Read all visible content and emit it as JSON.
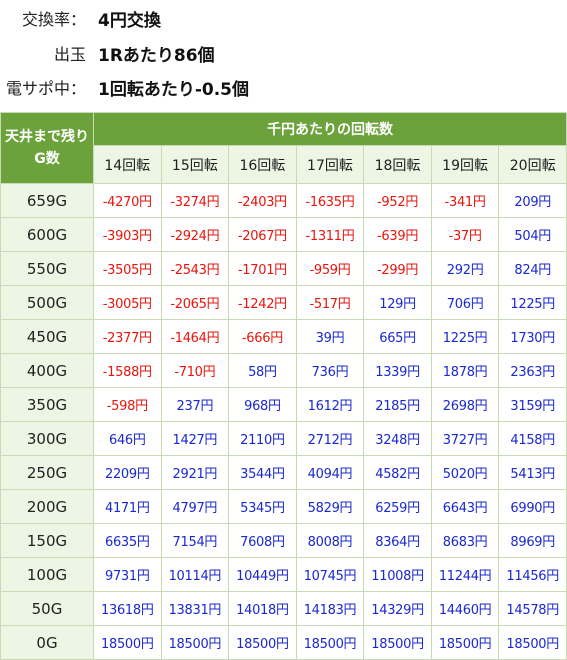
{
  "info": [
    {
      "label": "交換率：",
      "value": "4円交換"
    },
    {
      "label": "出玉",
      "value": "1Rあたり86個"
    },
    {
      "label": "電サポ中：",
      "value": "1回転あたり-0.5個"
    }
  ],
  "table": {
    "corner": "天井まで残りG数",
    "group_header": "千円あたりの回転数",
    "columns": [
      "14回転",
      "15回転",
      "16回転",
      "17回転",
      "18回転",
      "19回転",
      "20回転"
    ],
    "rows": [
      {
        "label": "659G",
        "values": [
          "-4270円",
          "-3274円",
          "-2403円",
          "-1635円",
          "-952円",
          "-341円",
          "209円"
        ]
      },
      {
        "label": "600G",
        "values": [
          "-3903円",
          "-2924円",
          "-2067円",
          "-1311円",
          "-639円",
          "-37円",
          "504円"
        ]
      },
      {
        "label": "550G",
        "values": [
          "-3505円",
          "-2543円",
          "-1701円",
          "-959円",
          "-299円",
          "292円",
          "824円"
        ]
      },
      {
        "label": "500G",
        "values": [
          "-3005円",
          "-2065円",
          "-1242円",
          "-517円",
          "129円",
          "706円",
          "1225円"
        ]
      },
      {
        "label": "450G",
        "values": [
          "-2377円",
          "-1464円",
          "-666円",
          "39円",
          "665円",
          "1225円",
          "1730円"
        ]
      },
      {
        "label": "400G",
        "values": [
          "-1588円",
          "-710円",
          "58円",
          "736円",
          "1339円",
          "1878円",
          "2363円"
        ]
      },
      {
        "label": "350G",
        "values": [
          "-598円",
          "237円",
          "968円",
          "1612円",
          "2185円",
          "2698円",
          "3159円"
        ]
      },
      {
        "label": "300G",
        "values": [
          "646円",
          "1427円",
          "2110円",
          "2712円",
          "3248円",
          "3727円",
          "4158円"
        ]
      },
      {
        "label": "250G",
        "values": [
          "2209円",
          "2921円",
          "3544円",
          "4094円",
          "4582円",
          "5020円",
          "5413円"
        ]
      },
      {
        "label": "200G",
        "values": [
          "4171円",
          "4797円",
          "5345円",
          "5829円",
          "6259円",
          "6643円",
          "6990円"
        ]
      },
      {
        "label": "150G",
        "values": [
          "6635円",
          "7154円",
          "7608円",
          "8008円",
          "8364円",
          "8683円",
          "8969円"
        ]
      },
      {
        "label": "100G",
        "values": [
          "9731円",
          "10114円",
          "10449円",
          "10745円",
          "11008円",
          "11244円",
          "11456円"
        ]
      },
      {
        "label": "50G",
        "values": [
          "13618円",
          "13831円",
          "14018円",
          "14183円",
          "14329円",
          "14460円",
          "14578円"
        ]
      },
      {
        "label": "0G",
        "values": [
          "18500円",
          "18500円",
          "18500円",
          "18500円",
          "18500円",
          "18500円",
          "18500円"
        ]
      }
    ]
  },
  "colors": {
    "header_green": "#6ba23b",
    "light_green": "#edf5e4",
    "negative": "#e8150b",
    "positive": "#1a28d0"
  }
}
